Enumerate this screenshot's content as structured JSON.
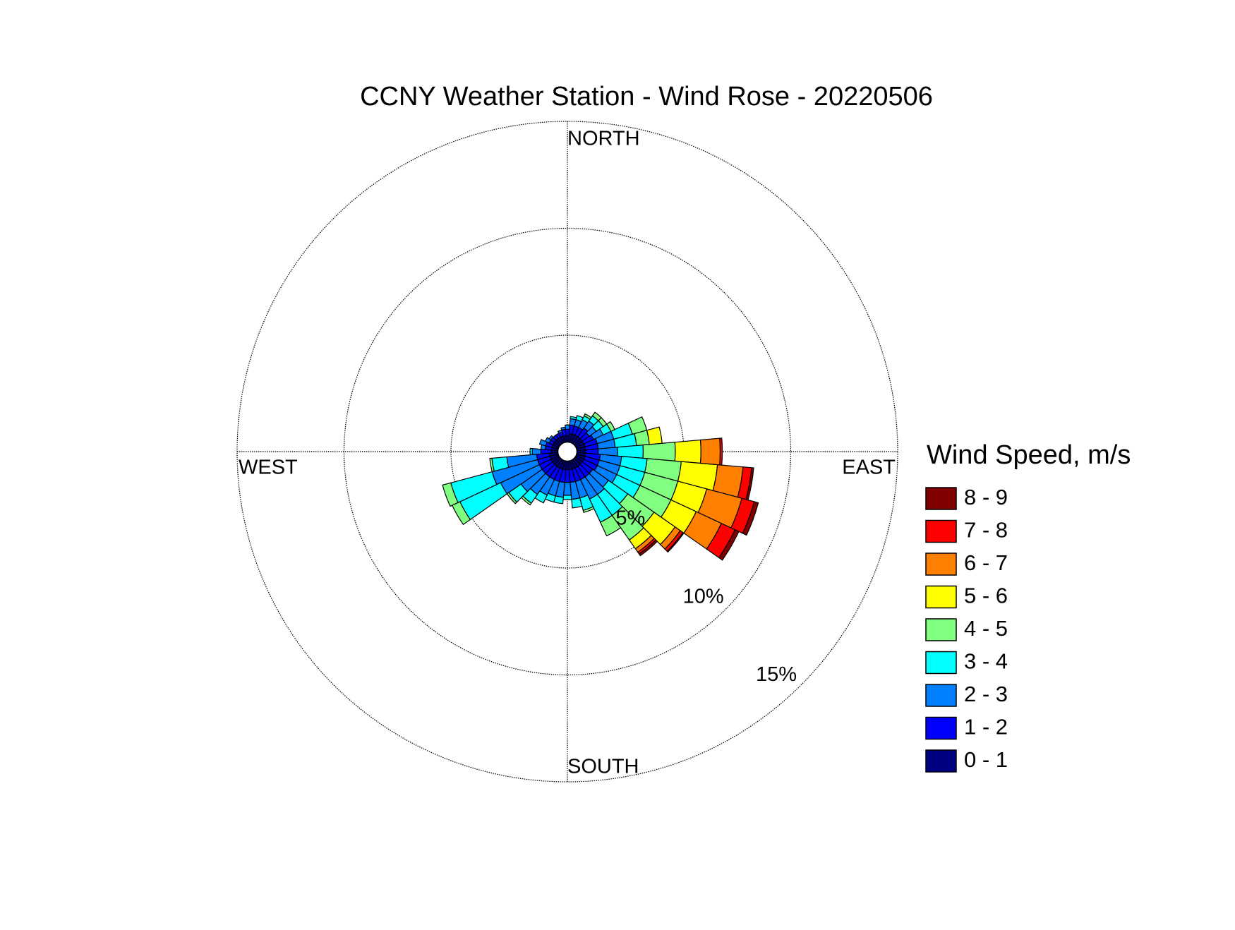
{
  "chart_data": {
    "type": "windrose",
    "title": "CCNY Weather Station - Wind Rose - 20220506",
    "direction_labels": {
      "north": "NORTH",
      "east": "EAST",
      "south": "SOUTH",
      "west": "WEST"
    },
    "legend_title": "Wind Speed, m/s",
    "directions": [
      0,
      10,
      20,
      30,
      40,
      50,
      60,
      70,
      80,
      90,
      100,
      110,
      120,
      130,
      140,
      150,
      160,
      170,
      180,
      190,
      200,
      210,
      220,
      230,
      240,
      250,
      260,
      270,
      280,
      290,
      300,
      310,
      320,
      330,
      340,
      350
    ],
    "rlim": [
      0,
      15
    ],
    "rticks": [
      {
        "value": 5,
        "label": "5%"
      },
      {
        "value": 10,
        "label": "10%"
      },
      {
        "value": 15,
        "label": "15%"
      }
    ],
    "grid": true,
    "series": [
      {
        "name": "0 - 1",
        "color": "#000080",
        "values": [
          0.3,
          0.4,
          0.4,
          0.4,
          0.4,
          0.4,
          0.4,
          0.4,
          0.4,
          0.4,
          0.4,
          0.4,
          0.4,
          0.4,
          0.4,
          0.4,
          0.4,
          0.4,
          0.4,
          0.4,
          0.4,
          0.4,
          0.4,
          0.4,
          0.4,
          0.4,
          0.4,
          0.3,
          0.3,
          0.3,
          0.3,
          0.3,
          0.3,
          0.3,
          0.3,
          0.3
        ]
      },
      {
        "name": "1 - 2",
        "color": "#0000ff",
        "values": [
          0.3,
          0.4,
          0.4,
          0.4,
          0.5,
          0.4,
          0.5,
          0.6,
          0.6,
          0.6,
          0.7,
          0.7,
          0.7,
          0.6,
          0.6,
          0.6,
          0.6,
          0.6,
          0.6,
          0.6,
          0.6,
          0.6,
          0.6,
          0.6,
          0.6,
          0.6,
          0.6,
          0.5,
          0.3,
          0.3,
          0.2,
          0.2,
          0.2,
          0.2,
          0.2,
          0.3
        ]
      },
      {
        "name": "2 - 3",
        "color": "#0080ff",
        "values": [
          0.2,
          0.3,
          0.3,
          0.4,
          0.4,
          0.4,
          0.5,
          0.8,
          0.8,
          0.9,
          1.0,
          1.0,
          1.0,
          0.9,
          1.0,
          1.0,
          0.8,
          0.8,
          0.6,
          0.7,
          0.7,
          0.8,
          1.0,
          1.2,
          2.0,
          2.2,
          1.4,
          0.4,
          0.2,
          0.3,
          0.2,
          0.1,
          0,
          0,
          0.1,
          0.1
        ]
      },
      {
        "name": "3 - 4",
        "color": "#00ffff",
        "values": [
          0,
          0.1,
          0.2,
          0.2,
          0.3,
          0.4,
          0.4,
          0.9,
          1.0,
          1.2,
          1.2,
          1.2,
          1.2,
          1.1,
          1.2,
          1.2,
          0.6,
          0.4,
          0.2,
          0.3,
          0.3,
          0.4,
          0.5,
          0.7,
          2.1,
          2.0,
          0.7,
          0.1,
          0,
          0,
          0,
          0,
          0,
          0,
          0,
          0
        ]
      },
      {
        "name": "4 - 5",
        "color": "#80ff80",
        "values": [
          0,
          0,
          0,
          0.1,
          0.2,
          0.2,
          0.2,
          0.7,
          0.6,
          1.5,
          1.6,
          1.6,
          1.6,
          1.5,
          1.4,
          0.7,
          0.1,
          0,
          0,
          0,
          0,
          0,
          0.1,
          0.1,
          0.4,
          0.4,
          0.1,
          0,
          0,
          0,
          0,
          0,
          0,
          0,
          0,
          0
        ]
      },
      {
        "name": "5 - 6",
        "color": "#ffff00",
        "values": [
          0,
          0,
          0,
          0,
          0,
          0,
          0,
          0,
          0.6,
          1.2,
          1.7,
          1.4,
          1.3,
          1.2,
          0.5,
          0,
          0,
          0,
          0,
          0,
          0,
          0,
          0,
          0,
          0,
          0,
          0,
          0,
          0,
          0,
          0,
          0,
          0,
          0,
          0,
          0
        ]
      },
      {
        "name": "6 - 7",
        "color": "#ff8000",
        "values": [
          0,
          0,
          0,
          0,
          0,
          0,
          0,
          0,
          0,
          0.9,
          1.2,
          1.7,
          1.3,
          0.3,
          0.2,
          0,
          0,
          0,
          0,
          0,
          0,
          0,
          0,
          0,
          0,
          0,
          0,
          0,
          0,
          0,
          0,
          0,
          0,
          0,
          0,
          0
        ]
      },
      {
        "name": "7 - 8",
        "color": "#ff0000",
        "values": [
          0,
          0,
          0,
          0,
          0,
          0,
          0,
          0,
          0,
          0.1,
          0.4,
          0.6,
          0.7,
          0.15,
          0.1,
          0,
          0,
          0,
          0,
          0,
          0,
          0,
          0,
          0,
          0,
          0,
          0,
          0,
          0,
          0,
          0,
          0,
          0,
          0,
          0,
          0
        ]
      },
      {
        "name": "8 - 9",
        "color": "#800000",
        "values": [
          0,
          0,
          0,
          0,
          0,
          0,
          0,
          0,
          0,
          0,
          0.1,
          0.2,
          0.2,
          0.05,
          0.1,
          0,
          0,
          0,
          0,
          0,
          0,
          0,
          0,
          0,
          0,
          0,
          0,
          0,
          0,
          0,
          0,
          0,
          0,
          0,
          0,
          0
        ]
      }
    ]
  }
}
